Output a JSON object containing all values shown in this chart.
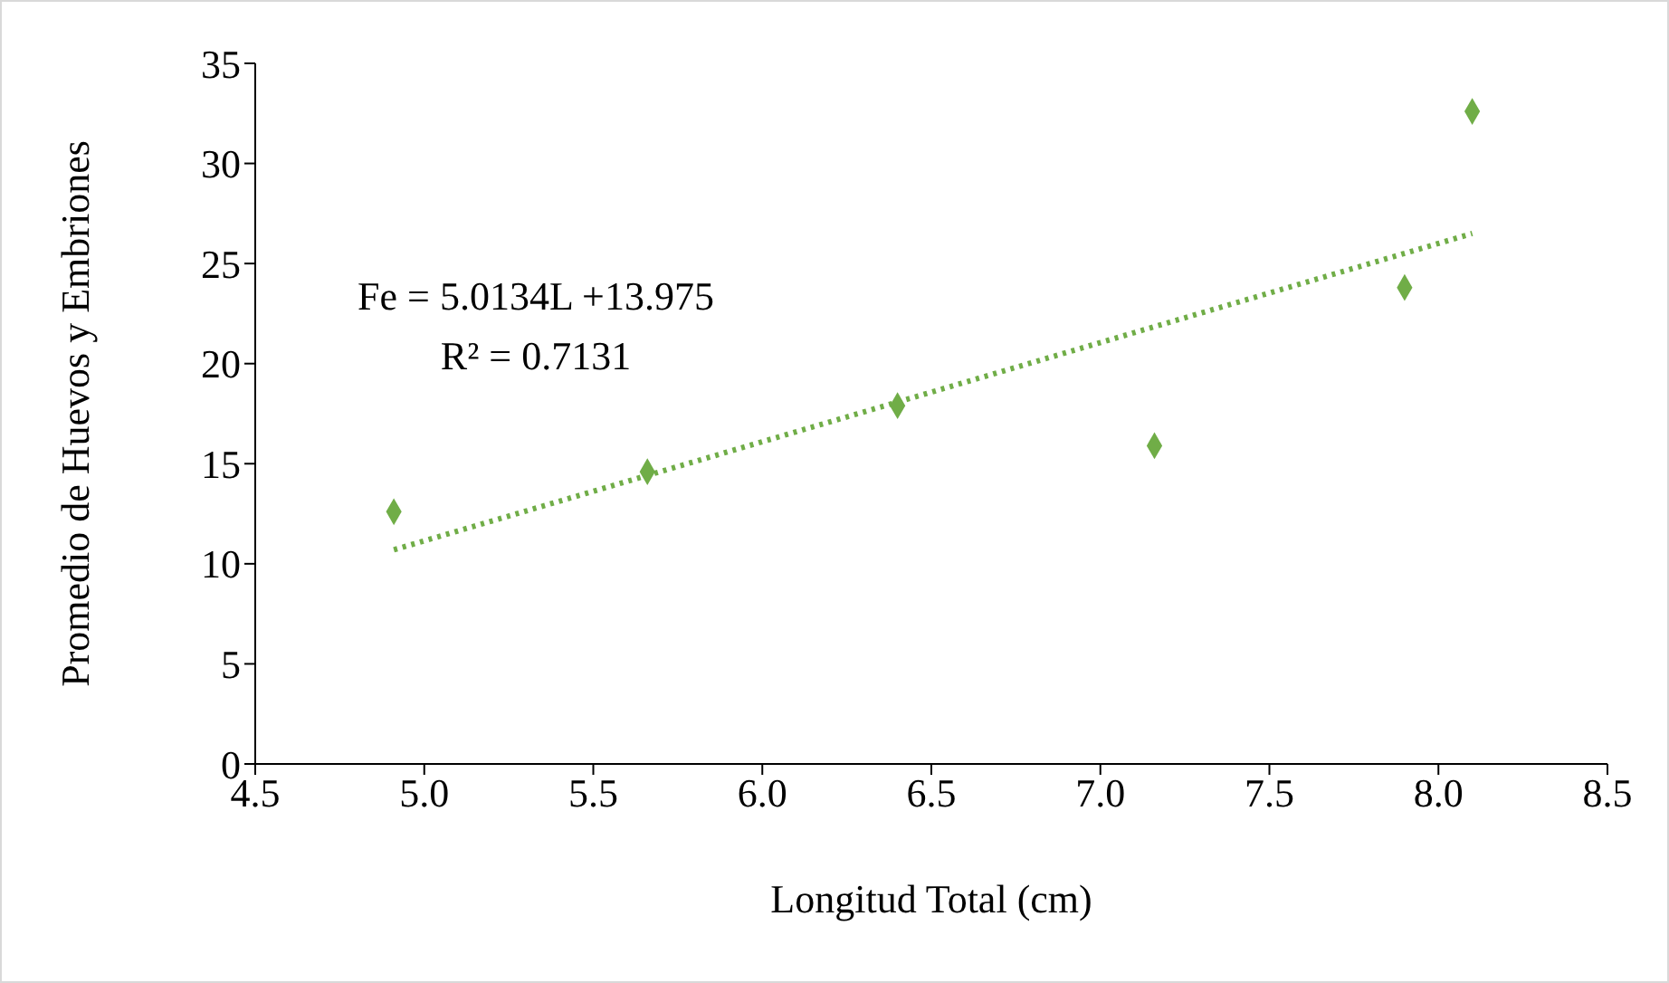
{
  "chart_data": {
    "type": "scatter",
    "xlabel": "Longitud Total (cm)",
    "ylabel": "Promedio de Huevos y Embriones",
    "annotations": [
      "Fe = 5.0134L +13.975",
      "R² = 0.7131"
    ],
    "xlim": [
      4.5,
      8.5
    ],
    "xticks": [
      4.5,
      {
        "value": 5,
        "label": "5.0"
      },
      5.5,
      {
        "value": 6,
        "label": "6.0"
      },
      6.5,
      {
        "value": 7,
        "label": "7.0"
      },
      7.5,
      {
        "value": 8,
        "label": "8.0"
      },
      8.5
    ],
    "ylim": [
      0,
      35
    ],
    "yticks": [
      0,
      5,
      10,
      15,
      20,
      25,
      30,
      35
    ],
    "series": [
      {
        "color": "#70ad47",
        "marker": "diamond",
        "x": [
          4.91,
          5.66,
          6.4,
          7.16,
          7.9,
          8.1
        ],
        "values": [
          12.6,
          14.6,
          17.9,
          15.9,
          23.8,
          32.6
        ]
      },
      {
        "type": "line",
        "color": "#70ad47",
        "line_style": "dotted",
        "x": [
          4.91,
          8.1
        ],
        "values": [
          10.7,
          26.5
        ]
      }
    ]
  }
}
